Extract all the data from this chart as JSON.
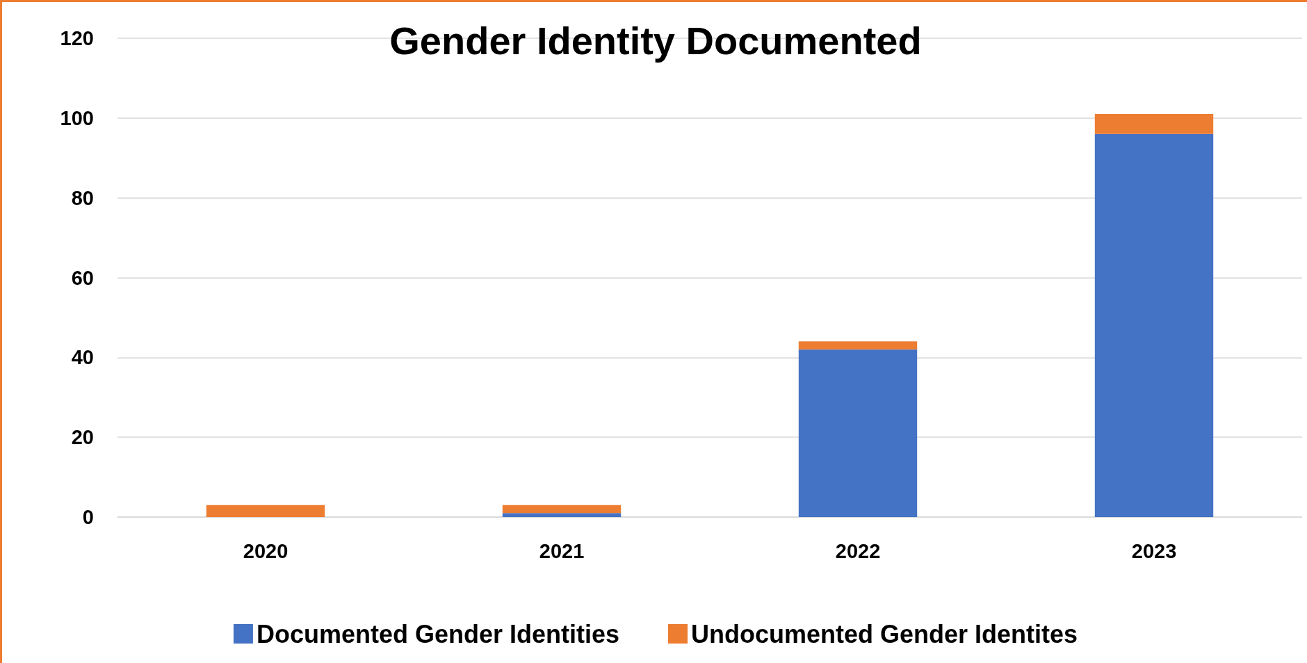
{
  "chart_data": {
    "type": "bar",
    "title": "Gender Identity Documented",
    "categories": [
      "2020",
      "2021",
      "2022",
      "2023"
    ],
    "stacked": true,
    "series": [
      {
        "name": "Documented Gender Identities",
        "color": "#4472c4",
        "values": [
          0,
          1,
          42,
          96
        ]
      },
      {
        "name": "Undocumented Gender Identites",
        "color": "#ed7d31",
        "values": [
          3,
          2,
          2,
          5
        ]
      }
    ],
    "ylim": [
      0,
      120
    ],
    "yticks": [
      0,
      20,
      40,
      60,
      80,
      100,
      120
    ],
    "grid": "y",
    "legend": "bottom"
  }
}
